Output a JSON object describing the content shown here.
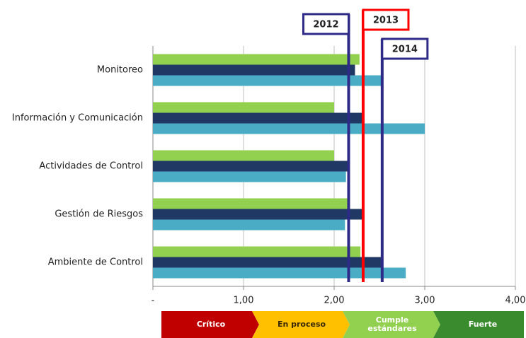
{
  "chart_data": {
    "type": "bar",
    "orientation": "horizontal",
    "categories": [
      "Monitoreo",
      "Información y Comunicación",
      "Actividades de Control",
      "Gestión de Riesgos",
      "Ambiente de Control"
    ],
    "series": [
      {
        "color": "#92d050",
        "values": [
          2.28,
          2.0,
          2.0,
          2.17,
          2.29
        ]
      },
      {
        "color": "#1f3864",
        "values": [
          2.23,
          2.33,
          2.17,
          2.32,
          2.54
        ]
      },
      {
        "color": "#4bacc6",
        "values": [
          2.52,
          3.0,
          2.13,
          2.12,
          2.79
        ]
      }
    ],
    "xlim": [
      0,
      4
    ],
    "xticks": [
      {
        "value": 0,
        "label": "-"
      },
      {
        "value": 1,
        "label": "1,00"
      },
      {
        "value": 2,
        "label": "2,00"
      },
      {
        "value": 3,
        "label": "3,00"
      },
      {
        "value": 4,
        "label": "4,00"
      }
    ],
    "grid": true,
    "reference_lines": [
      {
        "label": "2012",
        "value": 2.16,
        "color": "#2e2a87"
      },
      {
        "label": "2013",
        "value": 2.32,
        "color": "#ff0000"
      },
      {
        "label": "2014",
        "value": 2.53,
        "color": "#2e2a87"
      }
    ],
    "bands": [
      {
        "label": "Crítico",
        "from": 0,
        "to": 1,
        "color": "#c00000",
        "text_color": "#ffffff"
      },
      {
        "label": "En proceso",
        "from": 1,
        "to": 2,
        "color": "#ffc000",
        "text_color": "#3a2a00"
      },
      {
        "label": "Cumple estándares",
        "from": 2,
        "to": 3,
        "color": "#92d050",
        "text_color": "#ffffff"
      },
      {
        "label": "Fuerte",
        "from": 3,
        "to": 4,
        "color": "#3a8b2e",
        "text_color": "#ffffff"
      }
    ]
  }
}
